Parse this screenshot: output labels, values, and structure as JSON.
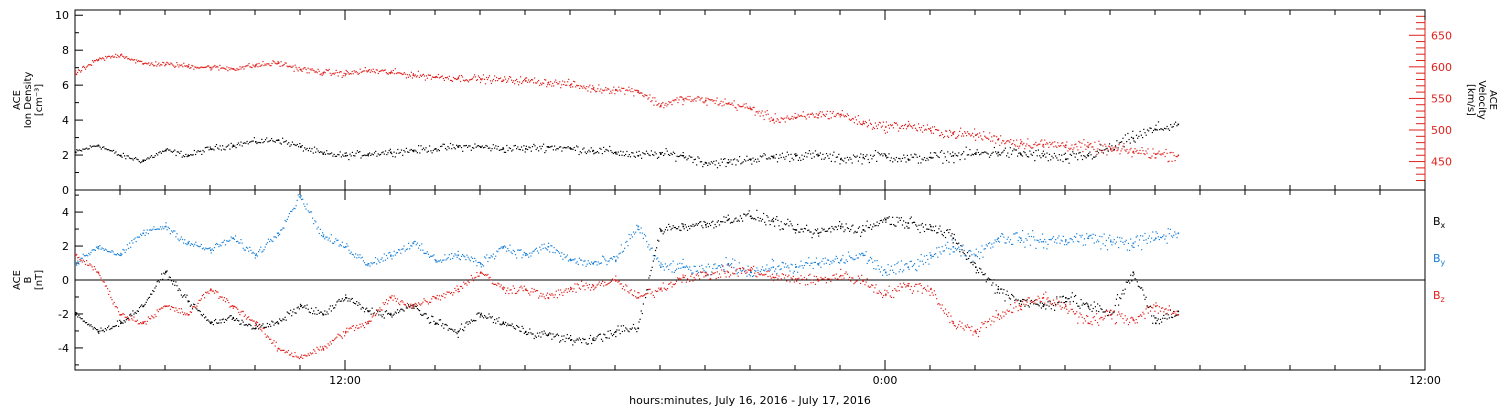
{
  "chart_data": [
    {
      "type": "scatter",
      "panel": "top",
      "ylabel_left": [
        "ACE",
        "Ion Density",
        "[cm⁻³]"
      ],
      "ylabel_right": [
        "ACE",
        "Velocity",
        "[km/s]"
      ],
      "ylim_left": [
        0,
        10.3
      ],
      "ylim_right": [
        405,
        690
      ],
      "yticks_left": [
        0,
        2,
        4,
        6,
        8,
        10
      ],
      "yticks_right": [
        450,
        500,
        550,
        600,
        650
      ],
      "xlim_hours": [
        6,
        36
      ],
      "colors": {
        "density": "#000000",
        "velocity": "#e0201b"
      },
      "series": [
        {
          "key": "density",
          "axis": "left",
          "points": [
            [
              6.0,
              2.2
            ],
            [
              6.5,
              2.6
            ],
            [
              7.0,
              2.0
            ],
            [
              7.5,
              1.7
            ],
            [
              8.0,
              2.3
            ],
            [
              8.5,
              2.0
            ],
            [
              9.0,
              2.4
            ],
            [
              9.5,
              2.6
            ],
            [
              10.0,
              2.8
            ],
            [
              10.5,
              2.9
            ],
            [
              11.0,
              2.5
            ],
            [
              11.5,
              2.1
            ],
            [
              12.0,
              2.0
            ],
            [
              12.5,
              2.1
            ],
            [
              13.0,
              2.2
            ],
            [
              13.5,
              2.3
            ],
            [
              14.0,
              2.4
            ],
            [
              14.5,
              2.5
            ],
            [
              15.0,
              2.5
            ],
            [
              15.5,
              2.4
            ],
            [
              16.0,
              2.4
            ],
            [
              16.5,
              2.5
            ],
            [
              17.0,
              2.4
            ],
            [
              17.5,
              2.3
            ],
            [
              18.0,
              2.2
            ],
            [
              18.5,
              2.0
            ],
            [
              19.0,
              2.1
            ],
            [
              19.5,
              2.0
            ],
            [
              20.0,
              1.6
            ],
            [
              20.5,
              1.6
            ],
            [
              21.0,
              1.8
            ],
            [
              21.5,
              1.9
            ],
            [
              22.0,
              2.0
            ],
            [
              22.5,
              2.0
            ],
            [
              23.0,
              1.8
            ],
            [
              23.5,
              1.9
            ],
            [
              24.0,
              2.0
            ],
            [
              24.5,
              1.8
            ],
            [
              25.0,
              1.9
            ],
            [
              25.5,
              2.0
            ],
            [
              26.0,
              2.1
            ],
            [
              26.5,
              2.2
            ],
            [
              27.0,
              2.1
            ],
            [
              27.5,
              2.0
            ],
            [
              28.0,
              1.8
            ],
            [
              28.5,
              2.0
            ],
            [
              29.0,
              2.4
            ],
            [
              29.5,
              3.0
            ],
            [
              30.0,
              3.5
            ],
            [
              30.5,
              3.8
            ]
          ]
        },
        {
          "key": "velocity",
          "axis": "right",
          "points": [
            [
              6.0,
              590
            ],
            [
              6.5,
              612
            ],
            [
              7.0,
              620
            ],
            [
              7.5,
              606
            ],
            [
              8.0,
              605
            ],
            [
              8.5,
              602
            ],
            [
              9.0,
              600
            ],
            [
              9.5,
              598
            ],
            [
              10.0,
              603
            ],
            [
              10.5,
              607
            ],
            [
              11.0,
              597
            ],
            [
              11.5,
              592
            ],
            [
              12.0,
              590
            ],
            [
              12.5,
              595
            ],
            [
              13.0,
              592
            ],
            [
              13.5,
              588
            ],
            [
              14.0,
              585
            ],
            [
              14.5,
              583
            ],
            [
              15.0,
              582
            ],
            [
              15.5,
              580
            ],
            [
              16.0,
              579
            ],
            [
              16.5,
              576
            ],
            [
              17.0,
              573
            ],
            [
              17.5,
              566
            ],
            [
              18.0,
              565
            ],
            [
              18.5,
              563
            ],
            [
              19.0,
              540
            ],
            [
              19.5,
              550
            ],
            [
              20.0,
              548
            ],
            [
              20.5,
              543
            ],
            [
              21.0,
              535
            ],
            [
              21.5,
              518
            ],
            [
              22.0,
              520
            ],
            [
              22.5,
              525
            ],
            [
              23.0,
              526
            ],
            [
              23.5,
              512
            ],
            [
              24.0,
              506
            ],
            [
              24.5,
              508
            ],
            [
              25.0,
              500
            ],
            [
              25.5,
              495
            ],
            [
              26.0,
              493
            ],
            [
              26.5,
              486
            ],
            [
              27.0,
              480
            ],
            [
              27.5,
              478
            ],
            [
              28.0,
              477
            ],
            [
              28.5,
              474
            ],
            [
              29.0,
              470
            ],
            [
              29.5,
              467
            ],
            [
              30.0,
              463
            ],
            [
              30.5,
              461
            ]
          ]
        }
      ]
    },
    {
      "type": "scatter",
      "panel": "bottom",
      "ylabel_left": [
        "ACE",
        "B",
        "[nT]"
      ],
      "ylim": [
        -5.3,
        5.3
      ],
      "yticks": [
        -4,
        -2,
        0,
        2,
        4
      ],
      "xlim_hours": [
        6,
        36
      ],
      "colors": {
        "bx": "#000000",
        "by": "#1a80d8",
        "bz": "#e0201b"
      },
      "legend": {
        "bx": "Bx",
        "by": "By",
        "bz": "Bz"
      },
      "series": [
        {
          "key": "bx",
          "points": [
            [
              6.0,
              -2.0
            ],
            [
              6.5,
              -3.0
            ],
            [
              7.0,
              -2.5
            ],
            [
              7.5,
              -1.5
            ],
            [
              8.0,
              0.5
            ],
            [
              8.5,
              -1.2
            ],
            [
              9.0,
              -2.5
            ],
            [
              9.5,
              -2.2
            ],
            [
              10.0,
              -2.8
            ],
            [
              10.5,
              -2.5
            ],
            [
              11.0,
              -1.5
            ],
            [
              11.5,
              -2.0
            ],
            [
              12.0,
              -1.0
            ],
            [
              12.5,
              -1.8
            ],
            [
              13.0,
              -2.0
            ],
            [
              13.5,
              -1.5
            ],
            [
              14.0,
              -2.5
            ],
            [
              14.5,
              -3.0
            ],
            [
              15.0,
              -2.0
            ],
            [
              15.5,
              -2.5
            ],
            [
              16.0,
              -3.0
            ],
            [
              16.5,
              -3.2
            ],
            [
              17.0,
              -3.5
            ],
            [
              17.5,
              -3.5
            ],
            [
              18.0,
              -3.0
            ],
            [
              18.5,
              -2.8
            ],
            [
              19.0,
              3.0
            ],
            [
              19.5,
              3.2
            ],
            [
              20.0,
              3.3
            ],
            [
              20.5,
              3.6
            ],
            [
              21.0,
              3.8
            ],
            [
              21.5,
              3.5
            ],
            [
              22.0,
              3.0
            ],
            [
              22.5,
              2.8
            ],
            [
              23.0,
              3.2
            ],
            [
              23.5,
              3.0
            ],
            [
              24.0,
              3.6
            ],
            [
              24.5,
              3.4
            ],
            [
              25.0,
              3.2
            ],
            [
              25.5,
              2.5
            ],
            [
              26.0,
              0.8
            ],
            [
              26.5,
              -0.5
            ],
            [
              27.0,
              -1.2
            ],
            [
              27.5,
              -1.5
            ],
            [
              28.0,
              -1.0
            ],
            [
              28.5,
              -1.5
            ],
            [
              29.0,
              -2.0
            ],
            [
              29.5,
              0.5
            ],
            [
              30.0,
              -2.5
            ],
            [
              30.5,
              -1.8
            ]
          ]
        },
        {
          "key": "by",
          "points": [
            [
              6.0,
              1.0
            ],
            [
              6.5,
              2.0
            ],
            [
              7.0,
              1.5
            ],
            [
              7.5,
              2.8
            ],
            [
              8.0,
              3.2
            ],
            [
              8.5,
              2.2
            ],
            [
              9.0,
              1.8
            ],
            [
              9.5,
              2.5
            ],
            [
              10.0,
              1.5
            ],
            [
              10.5,
              2.8
            ],
            [
              11.0,
              5.0
            ],
            [
              11.5,
              2.6
            ],
            [
              12.0,
              2.0
            ],
            [
              12.5,
              1.0
            ],
            [
              13.0,
              1.5
            ],
            [
              13.5,
              2.2
            ],
            [
              14.0,
              1.2
            ],
            [
              14.5,
              1.5
            ],
            [
              15.0,
              1.0
            ],
            [
              15.5,
              2.0
            ],
            [
              16.0,
              1.5
            ],
            [
              16.5,
              2.0
            ],
            [
              17.0,
              1.2
            ],
            [
              17.5,
              1.0
            ],
            [
              18.0,
              1.2
            ],
            [
              18.5,
              3.2
            ],
            [
              19.0,
              0.8
            ],
            [
              19.5,
              0.8
            ],
            [
              20.0,
              0.5
            ],
            [
              20.5,
              1.0
            ],
            [
              21.0,
              0.5
            ],
            [
              21.5,
              0.8
            ],
            [
              22.0,
              0.8
            ],
            [
              22.5,
              1.0
            ],
            [
              23.0,
              1.2
            ],
            [
              23.5,
              1.5
            ],
            [
              24.0,
              0.5
            ],
            [
              24.5,
              0.8
            ],
            [
              25.0,
              1.5
            ],
            [
              25.5,
              2.0
            ],
            [
              26.0,
              1.5
            ],
            [
              26.5,
              2.5
            ],
            [
              27.0,
              2.5
            ],
            [
              27.5,
              2.3
            ],
            [
              28.0,
              2.4
            ],
            [
              28.5,
              2.5
            ],
            [
              29.0,
              2.3
            ],
            [
              29.5,
              2.2
            ],
            [
              30.0,
              2.5
            ],
            [
              30.5,
              2.8
            ]
          ]
        },
        {
          "key": "bz",
          "points": [
            [
              6.0,
              1.5
            ],
            [
              6.5,
              0.5
            ],
            [
              7.0,
              -2.0
            ],
            [
              7.5,
              -2.5
            ],
            [
              8.0,
              -1.5
            ],
            [
              8.5,
              -2.0
            ],
            [
              9.0,
              -0.5
            ],
            [
              9.5,
              -1.5
            ],
            [
              10.0,
              -2.5
            ],
            [
              10.5,
              -4.0
            ],
            [
              11.0,
              -4.5
            ],
            [
              11.5,
              -4.0
            ],
            [
              12.0,
              -3.0
            ],
            [
              12.5,
              -2.5
            ],
            [
              13.0,
              -1.0
            ],
            [
              13.5,
              -1.5
            ],
            [
              14.0,
              -1.0
            ],
            [
              14.5,
              -0.5
            ],
            [
              15.0,
              0.5
            ],
            [
              15.5,
              -0.5
            ],
            [
              16.0,
              -0.5
            ],
            [
              16.5,
              -1.0
            ],
            [
              17.0,
              -0.5
            ],
            [
              17.5,
              -0.3
            ],
            [
              18.0,
              0.0
            ],
            [
              18.5,
              -1.0
            ],
            [
              19.0,
              -0.5
            ],
            [
              19.5,
              0.2
            ],
            [
              20.0,
              0.3
            ],
            [
              20.5,
              0.5
            ],
            [
              21.0,
              0.6
            ],
            [
              21.5,
              0.2
            ],
            [
              22.0,
              0.1
            ],
            [
              22.5,
              0.0
            ],
            [
              23.0,
              0.3
            ],
            [
              23.5,
              0.0
            ],
            [
              24.0,
              -0.8
            ],
            [
              24.5,
              -0.3
            ],
            [
              25.0,
              -0.5
            ],
            [
              25.5,
              -2.5
            ],
            [
              26.0,
              -3.0
            ],
            [
              26.5,
              -2.0
            ],
            [
              27.0,
              -1.5
            ],
            [
              27.5,
              -1.0
            ],
            [
              28.0,
              -1.5
            ],
            [
              28.5,
              -2.5
            ],
            [
              29.0,
              -2.0
            ],
            [
              29.5,
              -2.3
            ],
            [
              30.0,
              -1.5
            ],
            [
              30.5,
              -2.0
            ]
          ]
        }
      ]
    }
  ],
  "x_axis": {
    "tick_labels": [
      "12:00",
      "0:00",
      "12:00"
    ],
    "tick_hours": [
      12,
      24,
      36
    ],
    "xlabel": "hours:minutes, July 16, 2016 - July 17, 2016"
  }
}
